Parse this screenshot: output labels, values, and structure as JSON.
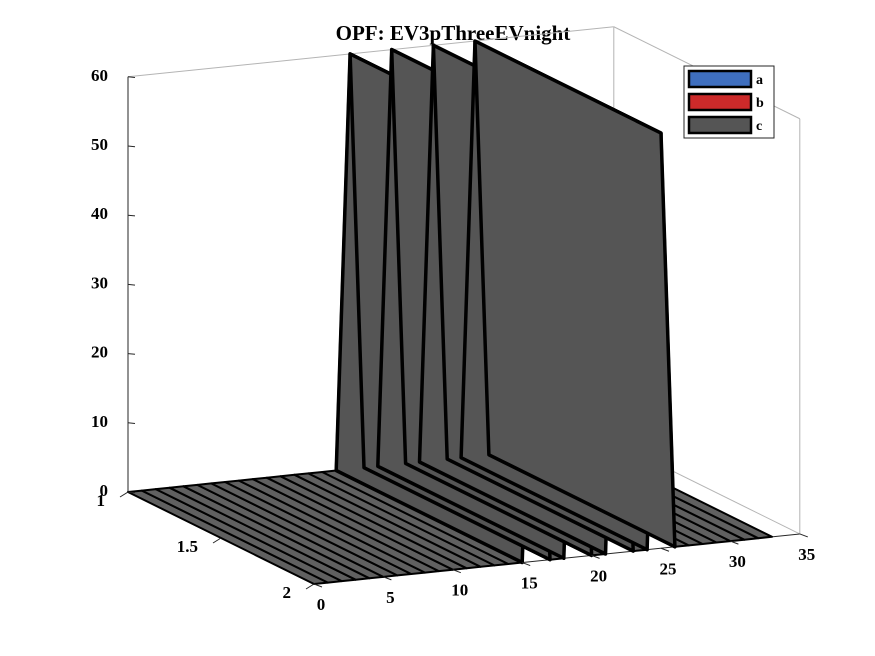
{
  "chart_data": {
    "type": "area",
    "title": "OPF: EV3pThreeEVnight",
    "xlabel": "",
    "ylabel": "",
    "zlabel": "",
    "x_ticks": [
      "0",
      "5",
      "10",
      "15",
      "20",
      "25",
      "30",
      "35"
    ],
    "y_ticks": [
      "1",
      "1.5",
      "2"
    ],
    "z_ticks": [
      "0",
      "10",
      "20",
      "30",
      "40",
      "50",
      "60"
    ],
    "xlim": [
      0,
      35
    ],
    "ylim": [
      1,
      2
    ],
    "zlim": [
      0,
      60
    ],
    "x": [
      0,
      1,
      2,
      3,
      4,
      5,
      6,
      7,
      8,
      9,
      10,
      11,
      12,
      13,
      14,
      15,
      16,
      17,
      18,
      19,
      20,
      21,
      22,
      23,
      24,
      25,
      26,
      27,
      28,
      29,
      30,
      31,
      32,
      33
    ],
    "series": [
      {
        "name": "a",
        "color": "#3f6fbf",
        "values": [
          0,
          0,
          0,
          0,
          0,
          0,
          0,
          0,
          0,
          0,
          0,
          0,
          0,
          0,
          0,
          0,
          0,
          0,
          0,
          0,
          0,
          0,
          0,
          0,
          0,
          0,
          0,
          0,
          0,
          0,
          0,
          0,
          0,
          0
        ]
      },
      {
        "name": "b",
        "color": "#cc2a2a",
        "values": [
          0,
          0,
          0,
          0,
          0,
          0,
          0,
          0,
          0,
          0,
          0,
          0,
          0,
          0,
          0,
          0,
          0,
          0,
          0,
          0,
          0,
          0,
          0,
          0,
          0,
          0,
          0,
          0,
          0,
          0,
          0,
          0,
          0,
          0
        ]
      },
      {
        "name": "c",
        "color": "#555555",
        "values": [
          0,
          0,
          0,
          0,
          0,
          0,
          0,
          0,
          0,
          0,
          0,
          0,
          0,
          0,
          0,
          0,
          60,
          0,
          0,
          60,
          0,
          0,
          60,
          0,
          0,
          60,
          0,
          0,
          0,
          0,
          0,
          0,
          0,
          0
        ]
      }
    ],
    "legend_position": "top-right",
    "grid": false
  }
}
